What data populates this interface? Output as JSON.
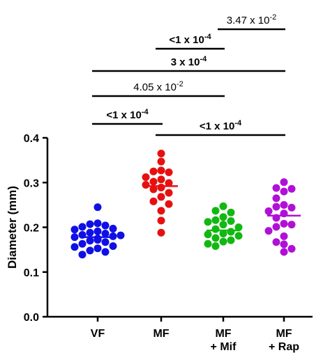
{
  "chart_data": {
    "type": "scatter",
    "subtype": "dot-plot-with-mean-lines",
    "ylabel": "Diameter (mm)",
    "ylim": [
      0.0,
      0.4
    ],
    "yticks": [
      "0.0",
      "0.1",
      "0.2",
      "0.3",
      "0.4"
    ],
    "grid": false,
    "categories": [
      {
        "lines": [
          "VF"
        ]
      },
      {
        "lines": [
          "MF"
        ]
      },
      {
        "lines": [
          "MF",
          "+ Mif"
        ]
      },
      {
        "lines": [
          "MF",
          "+ Rap"
        ]
      }
    ],
    "series": [
      {
        "color": "#1010e6",
        "mean": 0.178,
        "values": [
          0.245,
          0.209,
          0.207,
          0.204,
          0.201,
          0.197,
          0.195,
          0.191,
          0.188,
          0.186,
          0.183,
          0.182,
          0.18,
          0.178,
          0.175,
          0.172,
          0.17,
          0.167,
          0.163,
          0.158,
          0.156,
          0.153,
          0.148,
          0.145,
          0.139
        ]
      },
      {
        "color": "#e61010",
        "mean": 0.292,
        "values": [
          0.365,
          0.347,
          0.327,
          0.325,
          0.323,
          0.312,
          0.307,
          0.302,
          0.299,
          0.295,
          0.289,
          0.285,
          0.277,
          0.268,
          0.258,
          0.252,
          0.237,
          0.215,
          0.188
        ]
      },
      {
        "color": "#12b812",
        "mean": 0.193,
        "values": [
          0.247,
          0.237,
          0.233,
          0.223,
          0.216,
          0.214,
          0.212,
          0.206,
          0.2,
          0.196,
          0.19,
          0.186,
          0.184,
          0.181,
          0.176,
          0.171,
          0.168,
          0.163,
          0.158
        ]
      },
      {
        "color": "#b010d6",
        "mean": 0.226,
        "values": [
          0.301,
          0.288,
          0.286,
          0.28,
          0.265,
          0.25,
          0.246,
          0.244,
          0.236,
          0.231,
          0.221,
          0.208,
          0.206,
          0.201,
          0.192,
          0.18,
          0.167,
          0.162,
          0.152,
          0.145
        ]
      }
    ],
    "comparisons": [
      {
        "from": 2,
        "to": 3,
        "label": "3.47 x 10",
        "exp": "-2",
        "bold": false
      },
      {
        "from": 1,
        "to": 2,
        "label": "<1 x 10",
        "exp": "-4",
        "bold": true
      },
      {
        "from": 0,
        "to": 3,
        "label": "3 x 10",
        "exp": "-4",
        "bold": true
      },
      {
        "from": 0,
        "to": 2,
        "label": "4.05 x 10",
        "exp": "-2",
        "bold": false
      },
      {
        "from": 0,
        "to": 1,
        "label": "<1 x 10",
        "exp": "-4",
        "bold": true
      },
      {
        "from": 1,
        "to": 3,
        "label": "<1 x 10",
        "exp": "-4",
        "bold": true
      }
    ]
  }
}
